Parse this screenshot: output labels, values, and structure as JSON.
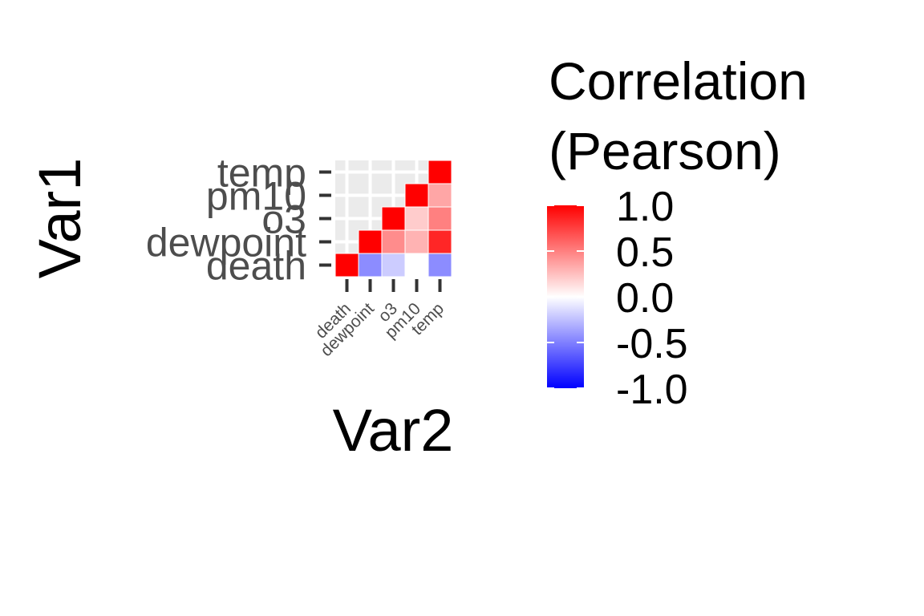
{
  "chart_data": {
    "type": "heatmap",
    "xlabel": "Var2",
    "ylabel": "Var1",
    "x_categories": [
      "death",
      "dewpoint",
      "o3",
      "pm10",
      "temp"
    ],
    "y_categories": [
      "death",
      "dewpoint",
      "o3",
      "pm10",
      "temp"
    ],
    "cells": [
      {
        "x": "death",
        "y": "death",
        "value": 1.0
      },
      {
        "x": "dewpoint",
        "y": "death",
        "value": -0.45
      },
      {
        "x": "dewpoint",
        "y": "dewpoint",
        "value": 1.0
      },
      {
        "x": "o3",
        "y": "death",
        "value": -0.2
      },
      {
        "x": "o3",
        "y": "dewpoint",
        "value": 0.45
      },
      {
        "x": "o3",
        "y": "o3",
        "value": 1.0
      },
      {
        "x": "pm10",
        "y": "death",
        "value": 0.0
      },
      {
        "x": "pm10",
        "y": "dewpoint",
        "value": 0.3
      },
      {
        "x": "pm10",
        "y": "o3",
        "value": 0.2
      },
      {
        "x": "pm10",
        "y": "pm10",
        "value": 1.0
      },
      {
        "x": "temp",
        "y": "death",
        "value": -0.45
      },
      {
        "x": "temp",
        "y": "dewpoint",
        "value": 0.85
      },
      {
        "x": "temp",
        "y": "o3",
        "value": 0.5
      },
      {
        "x": "temp",
        "y": "pm10",
        "value": 0.35
      },
      {
        "x": "temp",
        "y": "temp",
        "value": 1.0
      }
    ],
    "triangle": "upper",
    "empty_cell_color": "#ebebeb",
    "color_scale": {
      "low": "#0000ff",
      "mid": "#ffffff",
      "high": "#ff0000",
      "limits": [
        -1,
        1
      ]
    },
    "legend": {
      "title_lines": [
        "Correlation",
        "(Pearson)"
      ],
      "breaks": [
        1.0,
        0.5,
        0.0,
        -0.5,
        -1.0
      ],
      "labels": [
        "1.0",
        "0.5",
        "0.0",
        "-0.5",
        "-1.0"
      ],
      "position": "right"
    }
  }
}
